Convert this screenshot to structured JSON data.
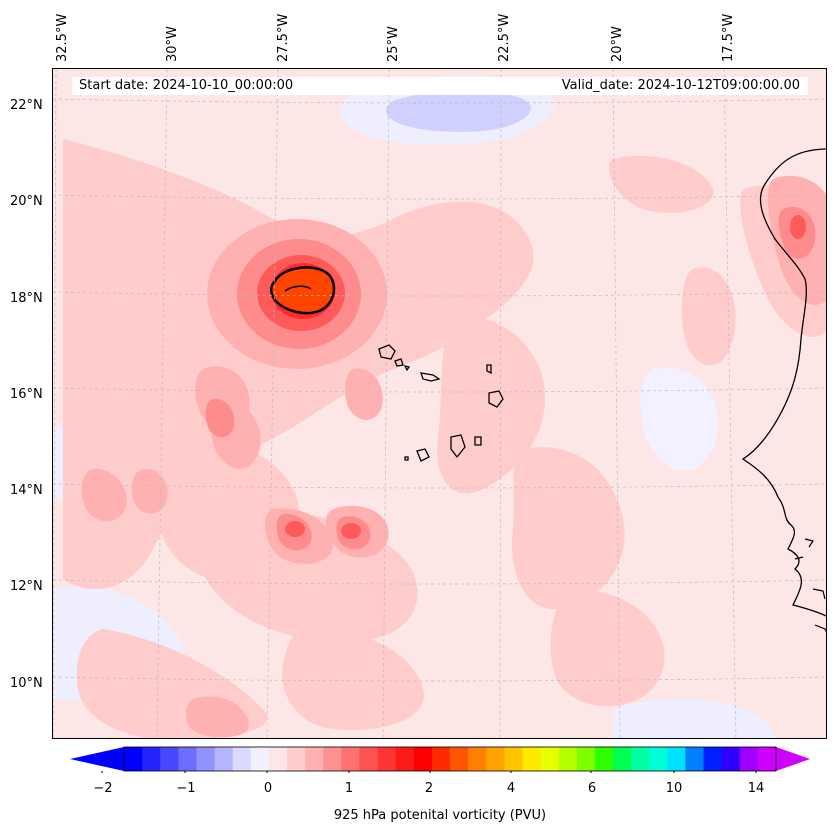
{
  "lon_labels": [
    "32.5°W",
    "30°W",
    "27.5°W",
    "25°W",
    "22.5°W",
    "20°W",
    "17.5°W"
  ],
  "lat_labels": [
    "22°N",
    "20°N",
    "18°N",
    "16°N",
    "14°N",
    "12°N",
    "10°N"
  ],
  "info": {
    "start": "Start date: 2024-10-10_00:00:00",
    "valid": "Valid_date: 2024-10-12T09:00:00.00"
  },
  "colorbar": {
    "ticks": [
      "−2",
      "−1",
      "0",
      "1",
      "2",
      "4",
      "6",
      "10",
      "14"
    ],
    "title": "925 hPa potenital vorticity (PVU)",
    "colors": [
      "#0000ff",
      "#2424ff",
      "#4848ff",
      "#6d6dff",
      "#9191ff",
      "#b5b5ff",
      "#dadaff",
      "#f0f0ff",
      "#ffe6e6",
      "#ffcccc",
      "#ffb0b0",
      "#ff9090",
      "#ff7070",
      "#ff5252",
      "#ff3434",
      "#ff1a1a",
      "#ff0000",
      "#ff2a00",
      "#ff5500",
      "#ff8000",
      "#ffa200",
      "#ffc400",
      "#ffe800",
      "#e8ff00",
      "#b4ff00",
      "#80ff00",
      "#30ff00",
      "#00ff50",
      "#00ffa0",
      "#00ffd8",
      "#00e0ff",
      "#0080ff",
      "#0020ff",
      "#3000ff",
      "#a000ff",
      "#d000ff"
    ],
    "under_color": "#0000ff",
    "over_color": "#d000ff"
  },
  "palette": {
    "background": "#fde6e6",
    "light_pink": "#ffcccc",
    "pink": "#ffb0b0",
    "salmon": "#ff8c8c",
    "red": "#ff5a5a",
    "deep_red": "#ff2a2a",
    "orange_red": "#ff4400",
    "light_blue": "#dcdcff",
    "blue": "#c8c8ff",
    "coast": "#000000"
  }
}
